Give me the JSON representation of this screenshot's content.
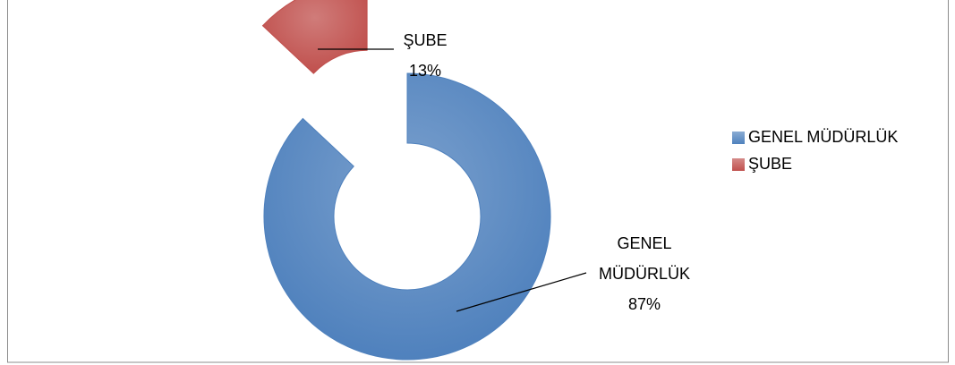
{
  "chart_data": {
    "type": "donut",
    "categories": [
      "GENEL MÜDÜRLÜK",
      "ŞUBE"
    ],
    "values": [
      87,
      13
    ],
    "value_labels": [
      "87%",
      "13%"
    ],
    "colors": [
      "#4f81bd",
      "#c0504d"
    ],
    "legend": "right"
  }
}
